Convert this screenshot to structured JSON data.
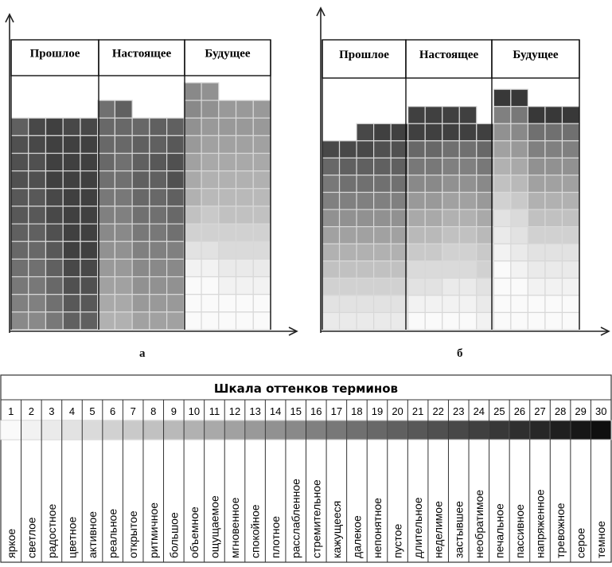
{
  "panels": [
    {
      "label": "а",
      "headers": [
        "Прошлое",
        "Настоящее",
        "Будущее"
      ],
      "columns": [
        [
          20,
          22,
          22,
          22,
          21,
          21,
          20,
          19,
          18,
          17,
          16,
          15
        ],
        [
          23,
          23,
          22,
          22,
          21,
          21,
          20,
          19,
          18,
          17,
          16,
          15
        ],
        [
          24,
          24,
          24,
          24,
          23,
          23,
          22,
          21,
          20,
          19,
          18,
          17
        ],
        [
          23,
          24,
          24,
          24,
          24,
          24,
          24,
          24,
          23,
          22,
          21,
          20
        ],
        [
          23,
          24,
          24,
          24,
          24,
          24,
          24,
          24,
          23,
          22,
          21,
          20
        ],
        [
          18,
          19,
          19,
          19,
          18,
          17,
          16,
          15,
          14,
          13,
          12,
          11,
          10
        ],
        [
          20,
          19,
          19,
          18,
          18,
          17,
          16,
          15,
          14,
          13,
          12,
          11,
          10
        ],
        [
          19,
          20,
          20,
          20,
          19,
          18,
          17,
          16,
          15,
          14,
          13,
          12
        ],
        [
          20,
          20,
          21,
          20,
          19,
          18,
          17,
          16,
          15,
          14,
          13,
          12
        ],
        [
          20,
          21,
          22,
          22,
          20,
          19,
          18,
          16,
          15,
          14,
          13,
          12
        ],
        [
          15,
          15,
          14,
          13,
          12,
          11,
          10,
          8,
          6,
          4,
          2,
          1,
          1,
          1
        ],
        [
          14,
          14,
          13,
          12,
          11,
          10,
          9,
          7,
          6,
          4,
          2,
          1,
          1,
          1
        ],
        [
          13,
          13,
          12,
          11,
          10,
          9,
          8,
          6,
          5,
          3,
          2,
          1,
          1
        ],
        [
          13,
          13,
          12,
          11,
          10,
          9,
          8,
          6,
          5,
          3,
          2,
          1,
          1
        ],
        [
          13,
          13,
          12,
          11,
          10,
          9,
          8,
          6,
          5,
          3,
          2,
          1,
          1
        ]
      ]
    },
    {
      "label": "б",
      "headers": [
        "Прошлое",
        "Настоящее",
        "Будущее"
      ],
      "columns": [
        [
          23,
          19,
          17,
          16,
          14,
          12,
          10,
          8,
          6,
          4,
          3
        ],
        [
          23,
          20,
          18,
          16,
          14,
          12,
          10,
          8,
          6,
          4,
          3
        ],
        [
          23,
          23,
          20,
          18,
          16,
          14,
          12,
          10,
          8,
          6,
          4,
          3
        ],
        [
          24,
          22,
          20,
          18,
          16,
          14,
          12,
          10,
          8,
          6,
          4,
          3
        ],
        [
          24,
          22,
          20,
          18,
          16,
          14,
          12,
          10,
          8,
          6,
          4,
          3
        ],
        [
          24,
          24,
          19,
          17,
          15,
          13,
          11,
          9,
          7,
          5,
          4,
          2,
          1
        ],
        [
          24,
          24,
          19,
          17,
          15,
          13,
          11,
          9,
          7,
          5,
          4,
          2,
          1
        ],
        [
          24,
          24,
          18,
          16,
          14,
          12,
          10,
          8,
          6,
          5,
          3,
          2,
          1
        ],
        [
          24,
          24,
          18,
          16,
          14,
          12,
          10,
          8,
          6,
          5,
          3,
          2,
          1
        ],
        [
          24,
          19,
          17,
          15,
          13,
          11,
          9,
          7,
          6,
          4,
          3,
          2
        ],
        [
          25,
          16,
          14,
          12,
          10,
          8,
          6,
          4,
          3,
          2,
          1,
          1,
          1,
          1
        ],
        [
          25,
          17,
          15,
          13,
          11,
          9,
          7,
          5,
          4,
          3,
          2,
          1,
          1,
          1
        ],
        [
          25,
          18,
          16,
          14,
          12,
          10,
          8,
          6,
          4,
          3,
          2,
          1,
          1
        ],
        [
          25,
          18,
          16,
          14,
          12,
          10,
          8,
          6,
          4,
          3,
          2,
          1,
          1
        ],
        [
          25,
          18,
          16,
          14,
          12,
          10,
          8,
          6,
          4,
          3,
          2,
          1,
          1
        ]
      ]
    }
  ],
  "scale": {
    "title": "Шкала оттенков терминов",
    "numbers": [
      "1",
      "2",
      "3",
      "4",
      "5",
      "6",
      "7",
      "8",
      "9",
      "10",
      "11",
      "12",
      "13",
      "14",
      "15",
      "16",
      "17",
      "18",
      "19",
      "20",
      "21",
      "22",
      "23",
      "24",
      "25",
      "26",
      "27",
      "28",
      "29",
      "30"
    ],
    "terms": [
      "яркое",
      "светлое",
      "радостное",
      "цветное",
      "активное",
      "реальное",
      "открытое",
      "ритмичное",
      "большое",
      "объемное",
      "ощущаемое",
      "мгновенное",
      "спокойное",
      "плотное",
      "расслабленное",
      "стремительное",
      "кажущееся",
      "далекое",
      "непонятное",
      "пустое",
      "длительное",
      "неделимое",
      "застывшее",
      "необратимое",
      "печальное",
      "пассивное",
      "напряженное",
      "тревожное",
      "серое",
      "темное"
    ]
  }
}
